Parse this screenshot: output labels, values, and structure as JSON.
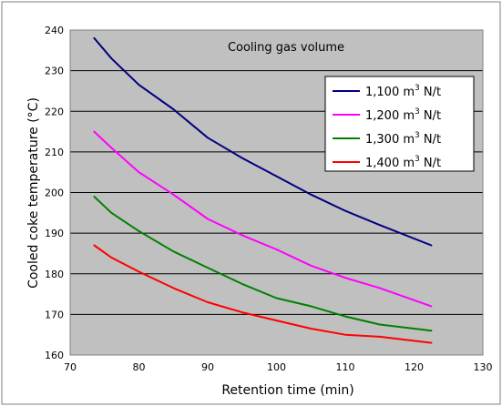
{
  "chart_data": {
    "type": "line",
    "title": "",
    "annotation": "Cooling gas volume",
    "xlabel": "Retention time (min)",
    "ylabel": "Cooled coke temperature (°C)",
    "xlim": [
      70,
      130
    ],
    "ylim": [
      160,
      240
    ],
    "x_ticks": [
      70,
      80,
      90,
      100,
      110,
      120,
      130
    ],
    "y_ticks": [
      160,
      170,
      180,
      190,
      200,
      210,
      220,
      230,
      240
    ],
    "grid": "horizontal",
    "legend_position": "top-right",
    "series": [
      {
        "name": "1,100 m3 N/t",
        "legend_base": "1,100 m",
        "legend_sup": "3",
        "legend_tail": " N/t",
        "color": "#000080",
        "x": [
          73.5,
          76,
          80,
          85,
          90,
          95,
          100,
          105,
          110,
          115,
          122.5
        ],
        "y": [
          238,
          233,
          226.5,
          220.5,
          213.5,
          208.5,
          204,
          199.5,
          195.5,
          192,
          187
        ]
      },
      {
        "name": "1,200 m3 N/t",
        "legend_base": "1,200 m",
        "legend_sup": "3",
        "legend_tail": " N/t",
        "color": "#ff00ff",
        "x": [
          73.5,
          76,
          80,
          85,
          90,
          95,
          100,
          105,
          110,
          115,
          122.5
        ],
        "y": [
          215,
          211,
          205,
          199.5,
          193.5,
          189.5,
          186,
          182,
          179,
          176.5,
          172
        ]
      },
      {
        "name": "1,300 m3 N/t",
        "legend_base": "1,300 m",
        "legend_sup": "3",
        "legend_tail": " N/t",
        "color": "#008000",
        "x": [
          73.5,
          76,
          80,
          85,
          90,
          95,
          100,
          105,
          110,
          115,
          122.5
        ],
        "y": [
          199,
          195,
          190.5,
          185.5,
          181.5,
          177.5,
          174,
          172,
          169.5,
          167.5,
          166
        ]
      },
      {
        "name": "1,400 m3 N/t",
        "legend_base": "1,400 m",
        "legend_sup": "3",
        "legend_tail": " N/t",
        "color": "#ff0000",
        "x": [
          73.5,
          76,
          80,
          85,
          90,
          95,
          100,
          105,
          110,
          115,
          122.5
        ],
        "y": [
          187,
          184,
          180.5,
          176.5,
          173,
          170.5,
          168.5,
          166.5,
          165,
          164.5,
          163
        ]
      }
    ]
  }
}
